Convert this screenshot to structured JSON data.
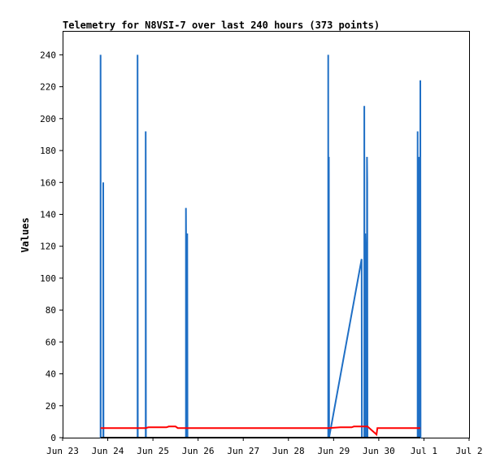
{
  "chart_data": {
    "type": "line",
    "title": "Telemetry for N8VSI-7 over last 240 hours (373 points)",
    "xlabel": "",
    "ylabel": "Values",
    "x_tick_labels": [
      "Jun 23",
      "Jun 24",
      "Jun 25",
      "Jun 26",
      "Jun 27",
      "Jun 28",
      "Jun 29",
      "Jun 30",
      "Jul 1",
      "Jul 2"
    ],
    "xlim": [
      0,
      9
    ],
    "ylim": [
      0,
      255
    ],
    "y_ticks": [
      0,
      20,
      40,
      60,
      80,
      100,
      120,
      140,
      160,
      180,
      200,
      220,
      240
    ],
    "grid": false,
    "series": [
      {
        "color": "#1f6fc5",
        "points": [
          [
            0.84,
            0
          ],
          [
            0.84,
            240
          ],
          [
            0.845,
            0
          ],
          [
            0.9,
            0
          ],
          [
            0.9,
            160
          ],
          [
            0.905,
            0
          ],
          [
            1.66,
            0
          ],
          [
            1.66,
            240
          ],
          [
            1.665,
            0
          ],
          [
            1.84,
            0
          ],
          [
            1.84,
            192
          ],
          [
            1.845,
            0
          ],
          [
            2.73,
            0
          ],
          [
            2.73,
            144
          ],
          [
            2.755,
            0
          ],
          [
            2.76,
            0
          ],
          [
            2.76,
            128
          ],
          [
            2.765,
            0
          ],
          [
            5.88,
            0
          ],
          [
            5.88,
            240
          ],
          [
            5.885,
            0
          ],
          [
            5.895,
            0
          ],
          [
            5.895,
            176
          ],
          [
            5.9,
            0
          ],
          [
            6.62,
            112
          ],
          [
            6.625,
            0
          ],
          [
            6.68,
            0
          ],
          [
            6.68,
            208
          ],
          [
            6.685,
            0
          ],
          [
            6.7,
            0
          ],
          [
            6.7,
            128
          ],
          [
            6.72,
            96
          ],
          [
            6.73,
            0
          ],
          [
            6.74,
            0
          ],
          [
            6.74,
            176
          ],
          [
            6.745,
            160
          ],
          [
            6.75,
            0
          ],
          [
            7.86,
            0
          ],
          [
            7.86,
            192
          ],
          [
            7.865,
            0
          ],
          [
            7.885,
            0
          ],
          [
            7.885,
            176
          ],
          [
            7.89,
            0
          ],
          [
            7.92,
            0
          ],
          [
            7.92,
            224
          ],
          [
            7.925,
            0
          ]
        ]
      },
      {
        "color": "#ff0000",
        "points": [
          [
            0.84,
            6
          ],
          [
            1.84,
            6
          ],
          [
            1.9,
            6.5
          ],
          [
            2.3,
            6.5
          ],
          [
            2.35,
            7
          ],
          [
            2.5,
            7
          ],
          [
            2.55,
            6
          ],
          [
            5.88,
            6
          ],
          [
            6.15,
            6.5
          ],
          [
            6.4,
            6.5
          ],
          [
            6.45,
            7
          ],
          [
            6.65,
            7
          ],
          [
            6.75,
            7
          ],
          [
            6.95,
            2
          ],
          [
            6.97,
            6
          ],
          [
            7.92,
            6
          ]
        ]
      },
      {
        "color": "#000000",
        "points": [
          [
            0.84,
            0
          ],
          [
            7.92,
            0
          ]
        ]
      }
    ]
  }
}
